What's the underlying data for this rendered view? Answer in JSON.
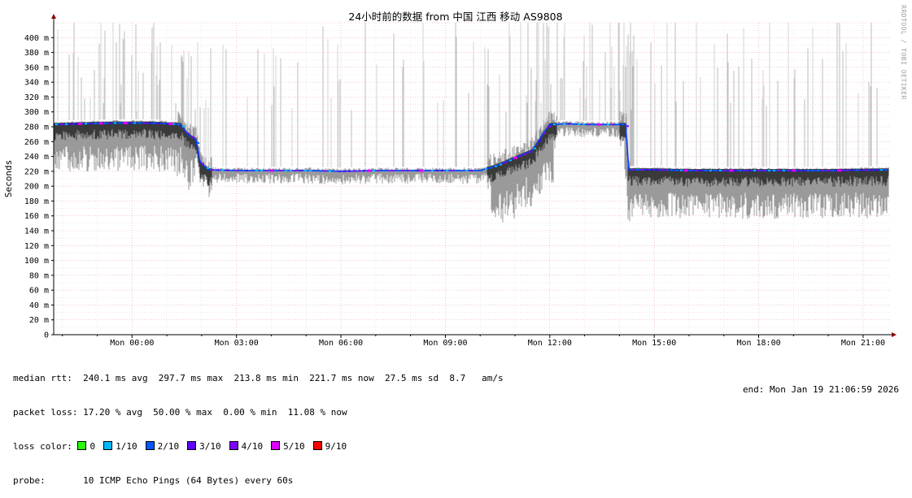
{
  "chart_data": {
    "type": "line",
    "title": "24小时前的数据 from 中国 江西 移动 AS9808",
    "ylabel": "Seconds",
    "ylim": [
      0,
      0.42
    ],
    "y_ticks": [
      "0",
      "20 m",
      "40 m",
      "60 m",
      "80 m",
      "100 m",
      "120 m",
      "140 m",
      "160 m",
      "180 m",
      "200 m",
      "220 m",
      "240 m",
      "260 m",
      "280 m",
      "300 m",
      "320 m",
      "340 m",
      "360 m",
      "380 m",
      "400 m"
    ],
    "x_tick_labels": [
      "Mon 00:00",
      "Mon 03:00",
      "Mon 06:00",
      "Mon 09:00",
      "Mon 12:00",
      "Mon 15:00",
      "Mon 18:00",
      "Mon 21:00"
    ],
    "x_range_hours": [
      -2.25,
      21.75
    ],
    "grid": true,
    "median_rtt_ms": [
      [
        -2.25,
        283
      ],
      [
        -1.5,
        284
      ],
      [
        -0.5,
        285
      ],
      [
        0.5,
        285
      ],
      [
        1.0,
        284
      ],
      [
        1.4,
        283
      ],
      [
        1.6,
        270
      ],
      [
        1.85,
        262
      ],
      [
        1.95,
        232
      ],
      [
        2.2,
        222
      ],
      [
        3,
        221
      ],
      [
        4,
        221
      ],
      [
        5,
        221
      ],
      [
        6,
        220
      ],
      [
        7,
        221
      ],
      [
        8,
        221
      ],
      [
        9,
        221
      ],
      [
        10,
        221
      ],
      [
        10.5,
        228
      ],
      [
        11,
        238
      ],
      [
        11.5,
        248
      ],
      [
        11.8,
        270
      ],
      [
        12.0,
        283
      ],
      [
        12.5,
        284
      ],
      [
        13,
        283
      ],
      [
        14,
        283
      ],
      [
        14.2,
        283
      ],
      [
        14.25,
        222
      ],
      [
        15,
        222
      ],
      [
        16,
        221
      ],
      [
        17,
        221
      ],
      [
        18,
        221
      ],
      [
        19,
        221
      ],
      [
        20,
        221
      ],
      [
        21.75,
        222
      ]
    ],
    "median_dot_colors": [
      "#0060ff",
      "#8c00ff",
      "#00bfff",
      "#4c00ff"
    ],
    "loss_marks_hours": [
      -1.5,
      -0.9,
      -0.2,
      1.1,
      4.0,
      6.8,
      8.3,
      11.0,
      13.4,
      15.9,
      17.2,
      19.0,
      20.3
    ]
  },
  "legend": {
    "median_rtt": "median rtt:  240.1 ms avg  297.7 ms max  213.8 ms min  221.7 ms now  27.5 ms sd  8.7   am/s",
    "packet_loss": "packet loss: 17.20 % avg  50.00 % max  0.00 % min  11.08 % now",
    "loss_color_label": "loss color:",
    "loss_colors": [
      {
        "label": "0",
        "color": "#26ff00"
      },
      {
        "label": "1/10",
        "color": "#00b8ff"
      },
      {
        "label": "2/10",
        "color": "#0059ff"
      },
      {
        "label": "3/10",
        "color": "#5e00ff"
      },
      {
        "label": "4/10",
        "color": "#7e00ff"
      },
      {
        "label": "5/10",
        "color": "#dd00ff"
      },
      {
        "label": "9/10",
        "color": "#ff0000"
      }
    ],
    "probe": "probe:       10 ICMP Echo Pings (64 Bytes) every 60s",
    "end": "end: Mon Jan 19 21:06:59 2026"
  },
  "watermark": "RRDTOOL / TOBI OETIKER"
}
